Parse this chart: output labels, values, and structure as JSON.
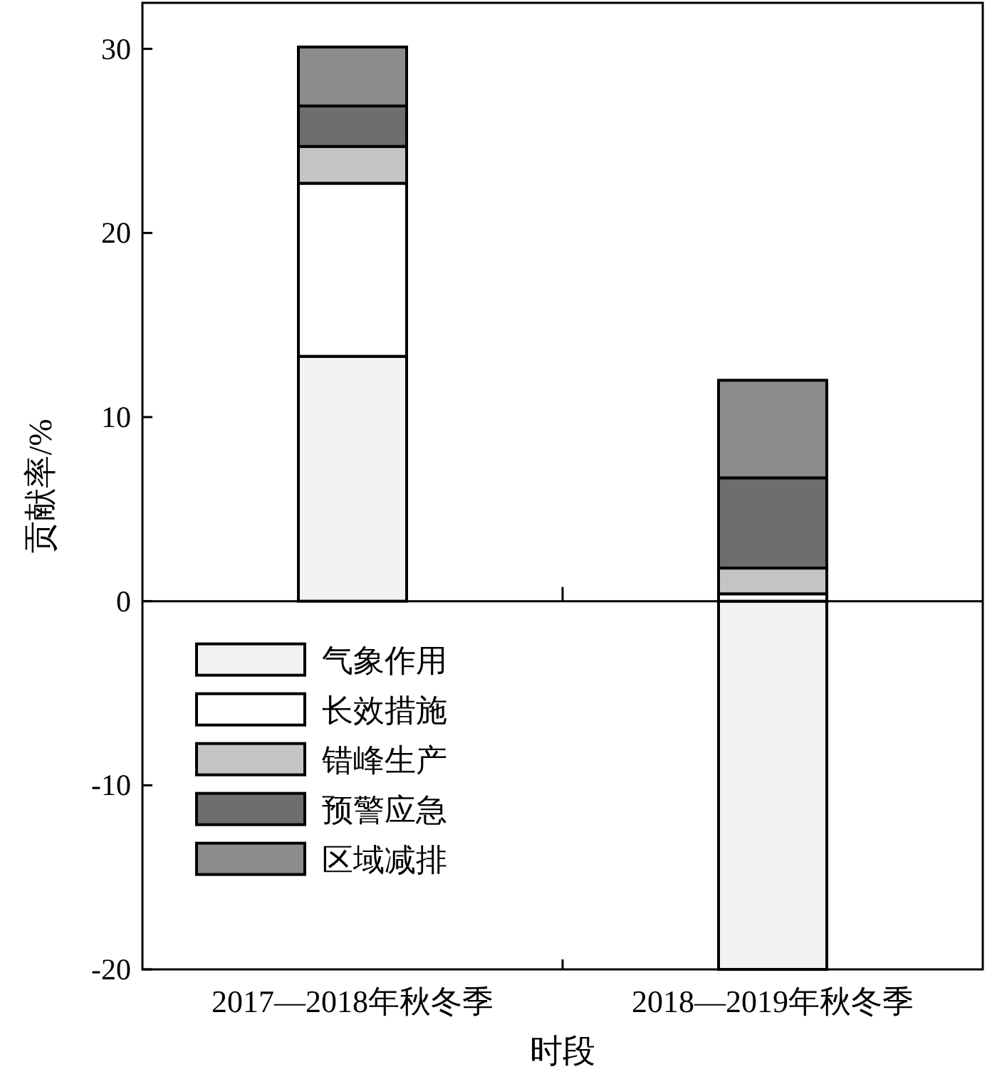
{
  "chart_data": {
    "type": "bar",
    "stacked": true,
    "xlabel": "时段",
    "ylabel": "贡献率/%",
    "categories": [
      "2017—2018年秋冬季",
      "2018—2019年秋冬季"
    ],
    "series": [
      {
        "name": "气象作用",
        "color": "#f2f2f2",
        "values": [
          13.3,
          -20
        ]
      },
      {
        "name": "长效措施",
        "color": "#ffffff",
        "values": [
          9.4,
          0.4
        ]
      },
      {
        "name": "错峰生产",
        "color": "#c4c4c4",
        "values": [
          2.0,
          1.4
        ]
      },
      {
        "name": "预警应急",
        "color": "#6e6e6e",
        "values": [
          2.2,
          4.9
        ]
      },
      {
        "name": "区域减排",
        "color": "#8c8c8c",
        "values": [
          3.2,
          5.3
        ]
      }
    ],
    "ylim": [
      -20,
      32.5
    ],
    "yticks": [
      -20,
      -10,
      0,
      10,
      20,
      30
    ],
    "legend": "bottom left",
    "ref_lines": [
      {
        "axis": "y",
        "value": 0,
        "color": "#000000"
      }
    ]
  }
}
